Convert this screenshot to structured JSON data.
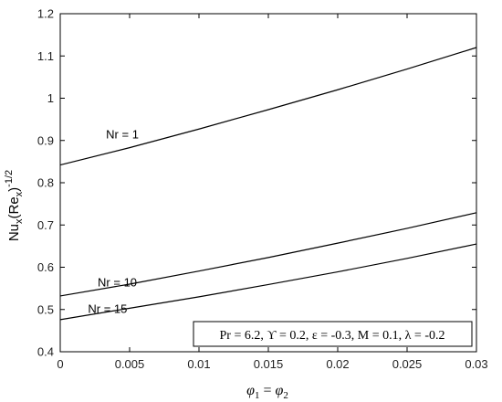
{
  "chart_data": {
    "type": "line",
    "xlabel": "φ1 = φ2",
    "ylabel": "Nux(Rex)-1/2",
    "ylabel_parts": {
      "base": "Nu",
      "sub1": "x",
      "open": "(Re",
      "sub2": "x",
      "close": ")",
      "sup": "-1/2"
    },
    "xlim": [
      0,
      0.03
    ],
    "ylim": [
      0.4,
      1.2
    ],
    "x_ticks": [
      0,
      0.005,
      0.01,
      0.015,
      0.02,
      0.025,
      0.03
    ],
    "x_tick_labels": [
      "0",
      "0.005",
      "0.01",
      "0.015",
      "0.02",
      "0.025",
      "0.03"
    ],
    "y_ticks": [
      0.4,
      0.5,
      0.6,
      0.7,
      0.8,
      0.9,
      1.0,
      1.1,
      1.2
    ],
    "y_tick_labels": [
      "0.4",
      "0.5",
      "0.6",
      "0.7",
      "0.8",
      "0.9",
      "1",
      "1.1",
      "1.2"
    ],
    "grid": false,
    "x": [
      0,
      0.005,
      0.01,
      0.015,
      0.02,
      0.025,
      0.03
    ],
    "series": [
      {
        "name": "Nr = 1",
        "values": [
          0.842,
          0.883,
          0.927,
          0.973,
          1.02,
          1.069,
          1.12
        ]
      },
      {
        "name": "Nr = 10",
        "values": [
          0.532,
          0.56,
          0.591,
          0.623,
          0.657,
          0.692,
          0.729
        ]
      },
      {
        "name": "Nr = 15",
        "values": [
          0.476,
          0.503,
          0.53,
          0.559,
          0.589,
          0.621,
          0.655
        ]
      }
    ],
    "series_label_positions": [
      {
        "x": 0.0033,
        "y": 0.905
      },
      {
        "x": 0.0027,
        "y": 0.555
      },
      {
        "x": 0.002,
        "y": 0.492
      }
    ],
    "annotation": "Pr = 6.2, ϒ = 0.2, ε = -0.3, M = 0.1, λ = -0.2",
    "annotation_placement": "bottom-right",
    "line_color": "#000000"
  }
}
